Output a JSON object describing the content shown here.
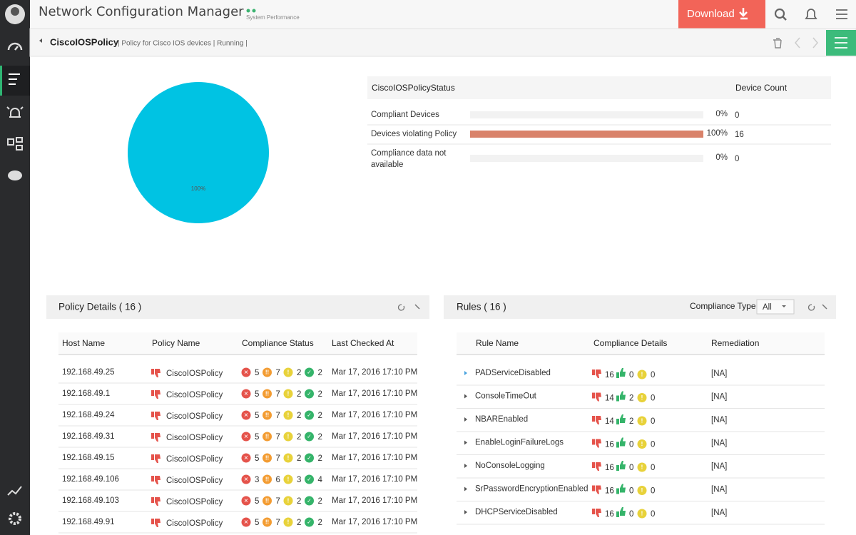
{
  "header": {
    "title": "Network Configuration Manager",
    "subtitle": "System Performance",
    "download": "Download"
  },
  "breadcrumb": {
    "policy": "CiscoIOSPolicy",
    "description": "| Policy for Cisco IOS devices | Running |"
  },
  "pie": {
    "values": [
      100
    ],
    "labels": [
      "100%"
    ],
    "color": "#00c3e3"
  },
  "status": {
    "headers": [
      "CiscoIOSPolicyStatus",
      "Device Count"
    ],
    "bar_color": "#d9826a",
    "rows": [
      {
        "label": "Compliant Devices",
        "percent": 0,
        "percent_label": "0%",
        "count": "0"
      },
      {
        "label": "Devices violating Policy",
        "percent": 100,
        "percent_label": "100%",
        "count": "16"
      },
      {
        "label": "Compliance data not available",
        "percent": 0,
        "percent_label": "0%",
        "count": "0"
      }
    ]
  },
  "policy_details": {
    "title": "Policy Details ( 16 )",
    "columns": [
      "Host Name",
      "Policy Name",
      "Compliance Status",
      "Last Checked At"
    ],
    "rows": [
      [
        "192.168.49.25",
        "CiscoIOSPolicy",
        "5",
        "7",
        "2",
        "2",
        "Mar 17, 2016 17:10 PM"
      ],
      [
        "192.168.49.1",
        "CiscoIOSPolicy",
        "5",
        "7",
        "2",
        "2",
        "Mar 17, 2016 17:10 PM"
      ],
      [
        "192.168.49.24",
        "CiscoIOSPolicy",
        "5",
        "7",
        "2",
        "2",
        "Mar 17, 2016 17:10 PM"
      ],
      [
        "192.168.49.31",
        "CiscoIOSPolicy",
        "5",
        "7",
        "2",
        "2",
        "Mar 17, 2016 17:10 PM"
      ],
      [
        "192.168.49.15",
        "CiscoIOSPolicy",
        "5",
        "7",
        "2",
        "2",
        "Mar 17, 2016 17:10 PM"
      ],
      [
        "192.168.49.106",
        "CiscoIOSPolicy",
        "3",
        "6",
        "3",
        "4",
        "Mar 17, 2016 17:10 PM"
      ],
      [
        "192.168.49.103",
        "CiscoIOSPolicy",
        "5",
        "7",
        "2",
        "2",
        "Mar 17, 2016 17:10 PM"
      ],
      [
        "192.168.49.91",
        "CiscoIOSPolicy",
        "5",
        "7",
        "2",
        "2",
        "Mar 17, 2016 17:10 PM"
      ]
    ]
  },
  "rules": {
    "title": "Rules ( 16 )",
    "filter_label": "Compliance Type",
    "filter_value": "All",
    "columns": [
      "Rule Name",
      "Compliance Details",
      "Remediation"
    ],
    "rows": [
      [
        "PADServiceDisabled",
        "16",
        "0",
        "0",
        "[NA]"
      ],
      [
        "ConsoleTimeOut",
        "14",
        "2",
        "0",
        "[NA]"
      ],
      [
        "NBAREnabled",
        "14",
        "2",
        "0",
        "[NA]"
      ],
      [
        "EnableLoginFailureLogs",
        "16",
        "0",
        "0",
        "[NA]"
      ],
      [
        "NoConsoleLogging",
        "16",
        "0",
        "0",
        "[NA]"
      ],
      [
        "SrPasswordEncryptionEnabled",
        "16",
        "0",
        "0",
        "[NA]"
      ],
      [
        "DHCPServiceDisabled",
        "16",
        "0",
        "0",
        "[NA]"
      ]
    ]
  }
}
